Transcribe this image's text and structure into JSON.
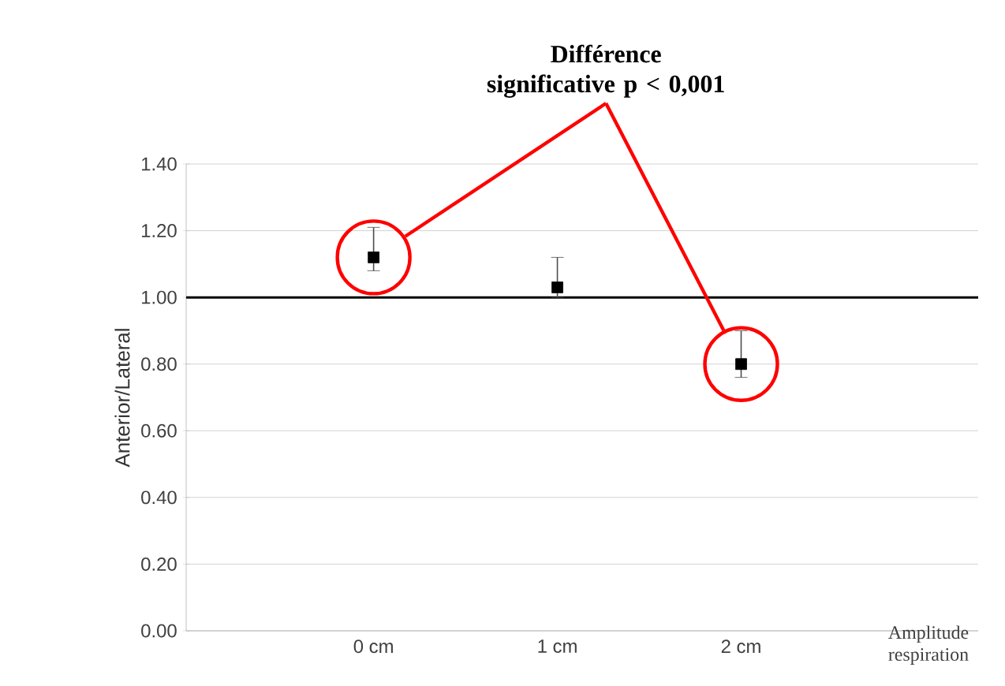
{
  "chart_data": {
    "type": "scatter",
    "categories": [
      "0 cm",
      "1 cm",
      "2 cm"
    ],
    "xlabel": "Amplitude respiration",
    "ylabel": "Anterior/Lateral",
    "series": [
      {
        "color": "#000000",
        "values": [
          1.12,
          1.03,
          0.8
        ],
        "errors": [
          [
            1.08,
            1.21
          ],
          [
            1.0,
            1.12
          ],
          [
            0.76,
            0.9
          ]
        ]
      }
    ],
    "marker": "square",
    "ylim": [
      0,
      1.4
    ],
    "yticks": [
      {
        "value": 0,
        "label": "0.00"
      },
      {
        "value": 0.2,
        "label": "0.20"
      },
      {
        "value": 0.4,
        "label": "0.40"
      },
      {
        "value": 0.6,
        "label": "0.60"
      },
      {
        "value": 0.8,
        "label": "0.80"
      },
      {
        "value": 1.0,
        "label": "1.00"
      },
      {
        "value": 1.2,
        "label": "1.20"
      },
      {
        "value": 1.4,
        "label": "1.40"
      }
    ],
    "grid": "y",
    "ref_lines": [
      {
        "axis": "y",
        "value": 1.0,
        "color": "#000000"
      }
    ],
    "annotations": [
      "Différence significative p < 0,001"
    ]
  }
}
